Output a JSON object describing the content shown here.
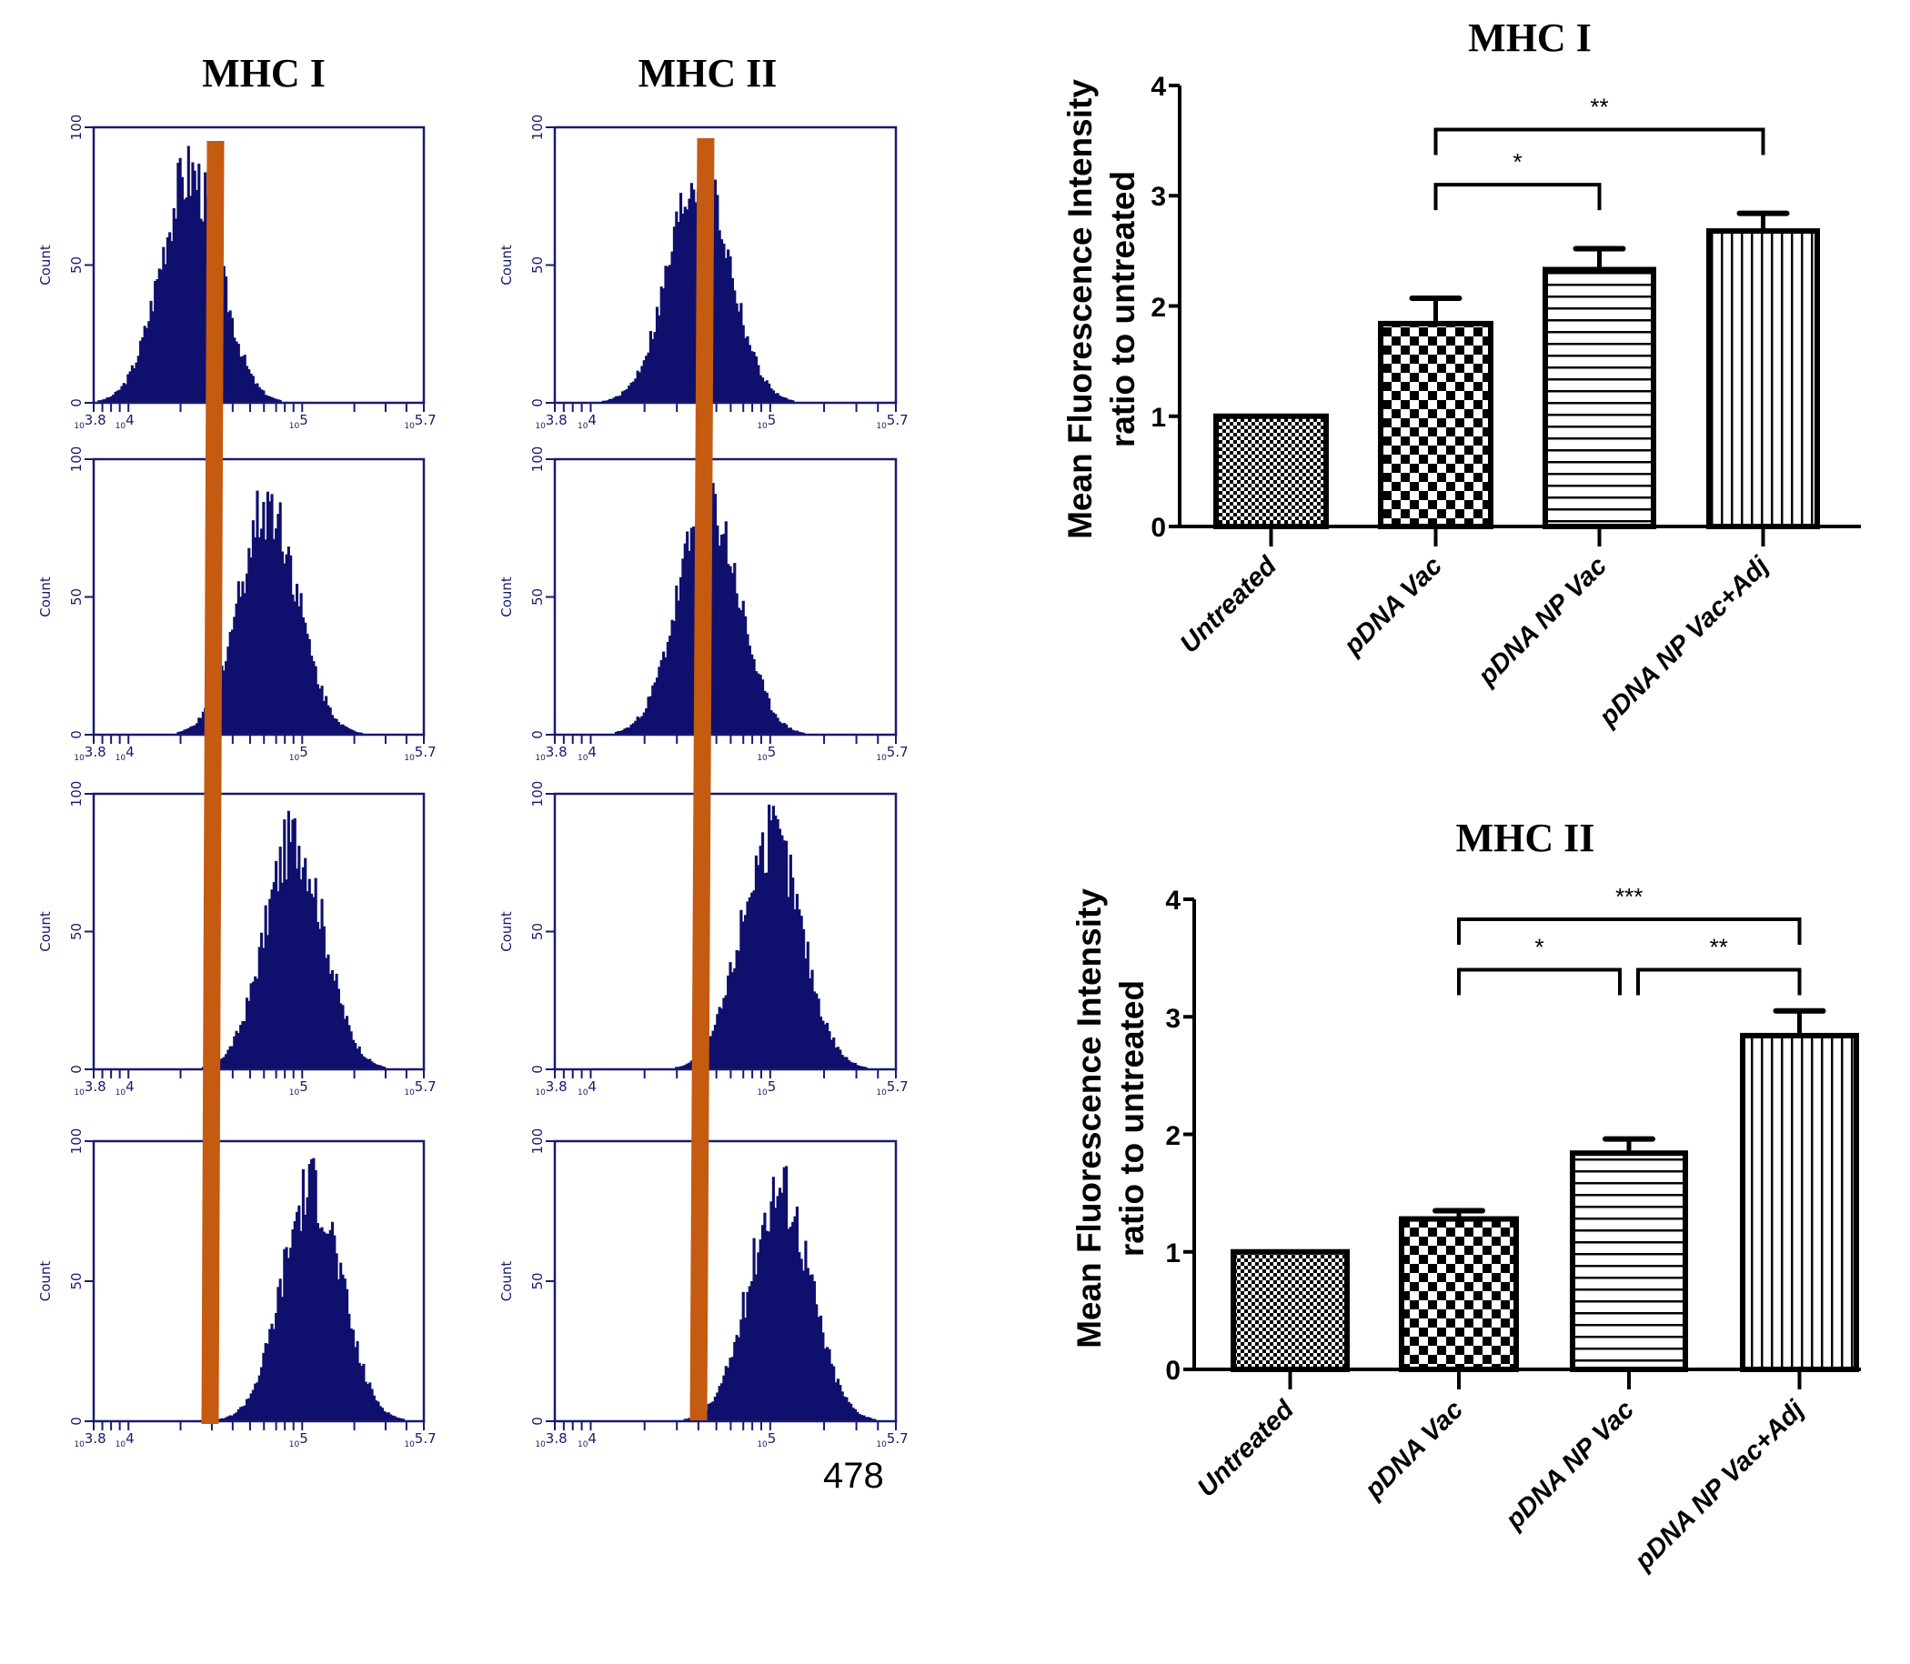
{
  "figure": {
    "histogram_titles": [
      "MHC I",
      "MHC II"
    ],
    "histogram_axis": {
      "ylabel": "Count",
      "yticks": [
        "0",
        "50",
        "100"
      ],
      "xticks": [
        "10^3.8",
        "10^4",
        "10^5",
        "10^5.7"
      ]
    },
    "histogram_marker_color": "#c55a11",
    "histogram_fill_color": "#0f0f6e",
    "histogram_rows": [
      {
        "group": "Untreated",
        "mhc1_peak_log": 4.35,
        "mhc2_peak_log": 4.6
      },
      {
        "group": "pDNA Vac",
        "mhc1_peak_log": 4.8,
        "mhc2_peak_log": 4.65
      },
      {
        "group": "pDNA NP Vac",
        "mhc1_peak_log": 4.95,
        "mhc2_peak_log": 5.0
      },
      {
        "group": "pDNA NP Vac+Adj",
        "mhc1_peak_log": 5.05,
        "mhc2_peak_log": 5.05
      }
    ],
    "page_number": "478"
  },
  "chart_data": [
    {
      "type": "bar",
      "title": "MHC I",
      "ylabel": "Mean Fluorescence Intensity ratio to untreated",
      "ylabel_lines": [
        "Mean Fluorescence Intensity",
        "ratio to untreated"
      ],
      "xlabel": "",
      "categories": [
        "Untreated",
        "pDNA Vac",
        "pDNA NP Vac",
        "pDNA NP Vac+Adj"
      ],
      "values": [
        1.0,
        1.84,
        2.33,
        2.68
      ],
      "errors": [
        0.0,
        0.23,
        0.19,
        0.16
      ],
      "ylim": [
        0,
        4
      ],
      "yticks": [
        "0",
        "1",
        "2",
        "3",
        "4"
      ],
      "patterns": [
        "fine-checker",
        "checker",
        "horizontal-lines",
        "vertical-lines"
      ],
      "significance": [
        {
          "from": 1,
          "to": 2,
          "label": "*",
          "level": 3.1
        },
        {
          "from": 1,
          "to": 3,
          "label": "**",
          "level": 3.6
        }
      ],
      "grid": false
    },
    {
      "type": "bar",
      "title": "MHC II",
      "ylabel": "Mean Fluorescence Intensity ratio to untreated",
      "ylabel_lines": [
        "Mean Fluorescence Intensity",
        "ratio to untreated"
      ],
      "xlabel": "",
      "categories": [
        "Untreated",
        "pDNA Vac",
        "pDNA NP Vac",
        "pDNA NP Vac+Adj"
      ],
      "values": [
        1.0,
        1.28,
        1.84,
        2.84
      ],
      "errors": [
        0.0,
        0.07,
        0.12,
        0.21
      ],
      "ylim": [
        0,
        4
      ],
      "yticks": [
        "0",
        "1",
        "2",
        "3",
        "4"
      ],
      "patterns": [
        "fine-checker",
        "checker",
        "horizontal-lines",
        "vertical-lines"
      ],
      "significance": [
        {
          "from": 1,
          "to": 2,
          "label": "*",
          "level": 3.4
        },
        {
          "from": 2,
          "to": 3,
          "label": "**",
          "level": 3.4
        },
        {
          "from": 1,
          "to": 3,
          "label": "***",
          "level": 3.83
        }
      ],
      "grid": false
    }
  ]
}
